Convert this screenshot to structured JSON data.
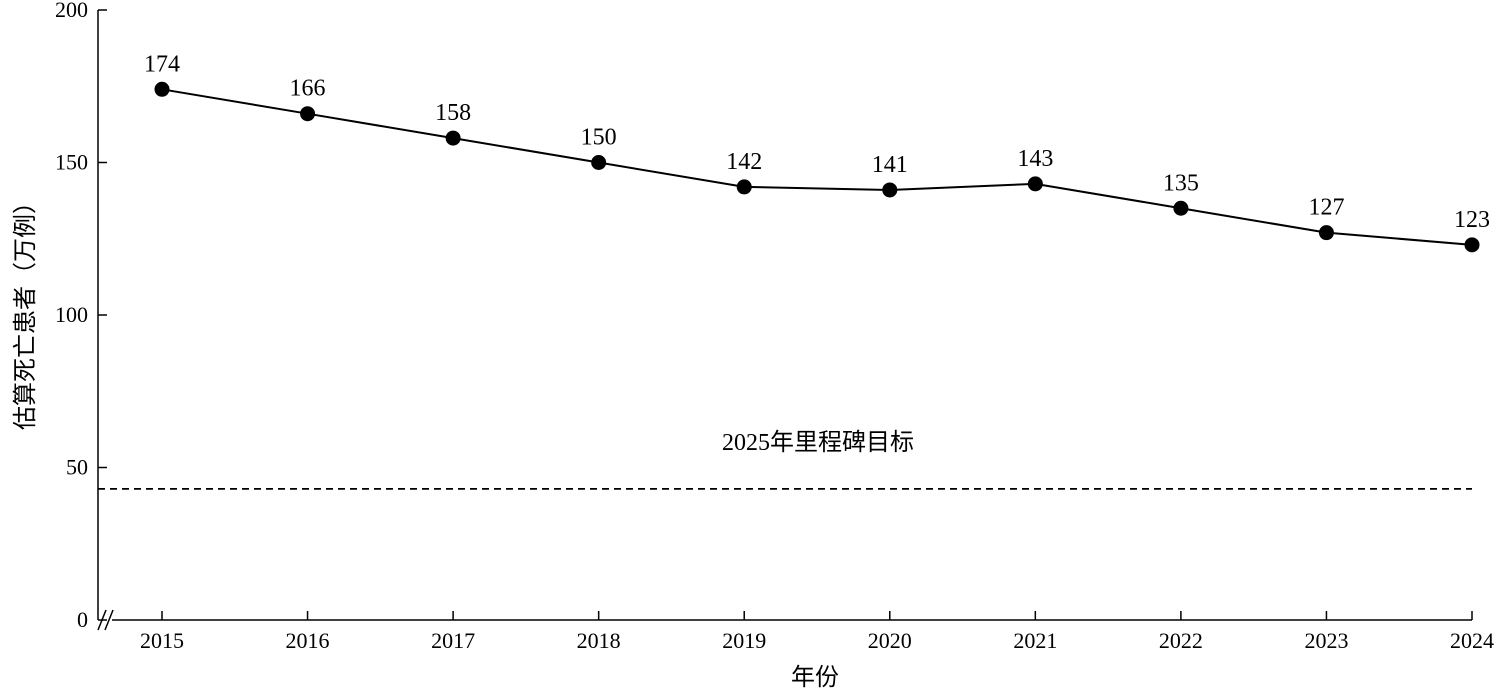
{
  "chart_data": {
    "type": "line",
    "title": "",
    "xlabel": "年份",
    "ylabel": "估算死亡患者（万例）",
    "x": [
      2015,
      2016,
      2017,
      2018,
      2019,
      2020,
      2021,
      2022,
      2023,
      2024
    ],
    "series": [
      {
        "values": [
          174,
          166,
          158,
          150,
          142,
          141,
          143,
          135,
          127,
          123
        ]
      }
    ],
    "ylim": [
      0,
      200
    ],
    "yticks": [
      0,
      50,
      100,
      150,
      200
    ],
    "reference_line": {
      "label": "2025年里程碑目标",
      "value": 43,
      "style": "dashed"
    },
    "axis_break": "x-axis near origin",
    "grid": false,
    "legend": "none"
  }
}
